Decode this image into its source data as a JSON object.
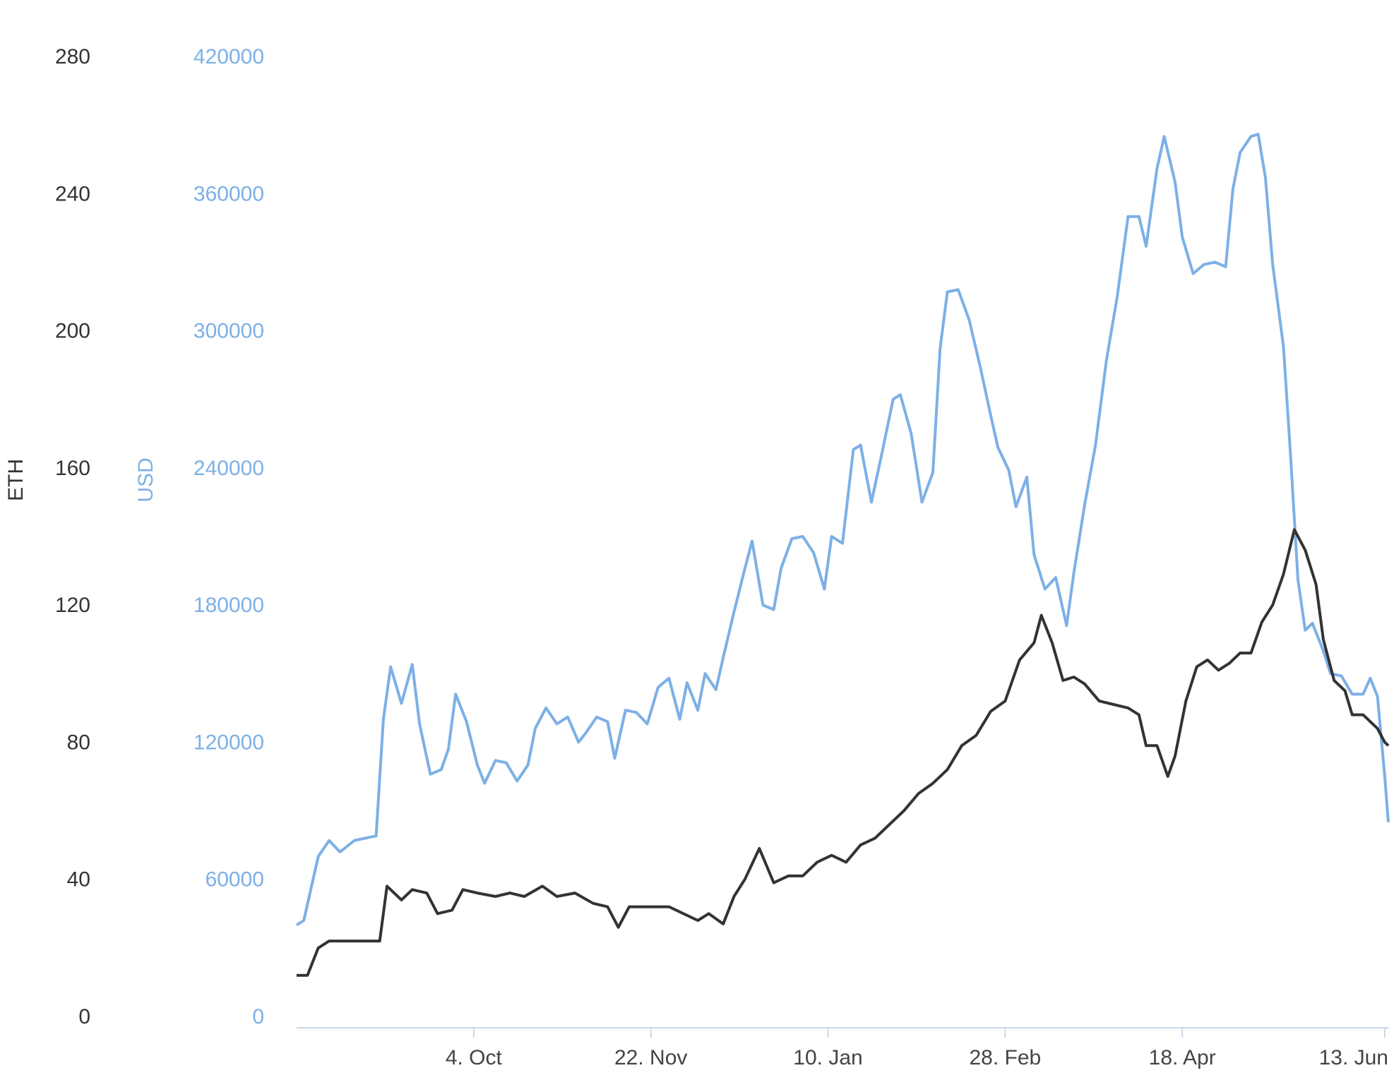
{
  "chart_data": {
    "type": "line",
    "title": "",
    "xlabel": "",
    "x_tick_labels": [
      "4. Oct",
      "22. Nov",
      "10. Jan",
      "28. Feb",
      "18. Apr",
      "13. Jun"
    ],
    "x_range": [
      "2020-08-16",
      "2021-06-14"
    ],
    "y_axes": [
      {
        "id": "eth",
        "label": "ETH",
        "ylim": [
          0,
          280
        ],
        "ticks": [
          0,
          40,
          80,
          120,
          160,
          200,
          240,
          280
        ],
        "color": "#333333"
      },
      {
        "id": "usd",
        "label": "USD",
        "ylim": [
          0,
          420000
        ],
        "ticks": [
          0,
          60000,
          120000,
          180000,
          240000,
          300000,
          360000,
          420000
        ],
        "color": "#7cb0e6"
      }
    ],
    "grid": false,
    "legend": "none",
    "series": [
      {
        "axis": "usd",
        "color": "#7cb0e6",
        "points": [
          [
            "2020-08-16",
            40000
          ],
          [
            "2020-08-18",
            42000
          ],
          [
            "2020-08-22",
            70000
          ],
          [
            "2020-08-25",
            77000
          ],
          [
            "2020-08-28",
            72000
          ],
          [
            "2020-09-01",
            77000
          ],
          [
            "2020-09-07",
            79000
          ],
          [
            "2020-09-09",
            130000
          ],
          [
            "2020-09-11",
            153000
          ],
          [
            "2020-09-14",
            137000
          ],
          [
            "2020-09-17",
            154000
          ],
          [
            "2020-09-19",
            128000
          ],
          [
            "2020-09-22",
            106000
          ],
          [
            "2020-09-25",
            108000
          ],
          [
            "2020-09-27",
            117000
          ],
          [
            "2020-09-29",
            141000
          ],
          [
            "2020-10-02",
            129000
          ],
          [
            "2020-10-05",
            110000
          ],
          [
            "2020-10-07",
            102000
          ],
          [
            "2020-10-10",
            112000
          ],
          [
            "2020-10-13",
            111000
          ],
          [
            "2020-10-16",
            103000
          ],
          [
            "2020-10-19",
            110000
          ],
          [
            "2020-10-21",
            126000
          ],
          [
            "2020-10-24",
            135000
          ],
          [
            "2020-10-27",
            128000
          ],
          [
            "2020-10-30",
            131000
          ],
          [
            "2020-11-02",
            120000
          ],
          [
            "2020-11-04",
            124000
          ],
          [
            "2020-11-07",
            131000
          ],
          [
            "2020-11-10",
            129000
          ],
          [
            "2020-11-12",
            113000
          ],
          [
            "2020-11-15",
            134000
          ],
          [
            "2020-11-18",
            133000
          ],
          [
            "2020-11-21",
            128000
          ],
          [
            "2020-11-24",
            144000
          ],
          [
            "2020-11-27",
            148000
          ],
          [
            "2020-11-30",
            130000
          ],
          [
            "2020-12-02",
            146000
          ],
          [
            "2020-12-05",
            134000
          ],
          [
            "2020-12-07",
            150000
          ],
          [
            "2020-12-10",
            143000
          ],
          [
            "2020-12-12",
            157000
          ],
          [
            "2020-12-15",
            177000
          ],
          [
            "2020-12-18",
            196000
          ],
          [
            "2020-12-20",
            208000
          ],
          [
            "2020-12-23",
            180000
          ],
          [
            "2020-12-26",
            178000
          ],
          [
            "2020-12-28",
            196000
          ],
          [
            "2020-12-31",
            209000
          ],
          [
            "2021-01-03",
            210000
          ],
          [
            "2021-01-06",
            203000
          ],
          [
            "2021-01-09",
            187000
          ],
          [
            "2021-01-11",
            210000
          ],
          [
            "2021-01-14",
            207000
          ],
          [
            "2021-01-17",
            248000
          ],
          [
            "2021-01-19",
            250000
          ],
          [
            "2021-01-22",
            225000
          ],
          [
            "2021-01-25",
            247000
          ],
          [
            "2021-01-28",
            270000
          ],
          [
            "2021-01-30",
            272000
          ],
          [
            "2021-02-02",
            255000
          ],
          [
            "2021-02-05",
            225000
          ],
          [
            "2021-02-08",
            238000
          ],
          [
            "2021-02-10",
            292000
          ],
          [
            "2021-02-12",
            317000
          ],
          [
            "2021-02-15",
            318000
          ],
          [
            "2021-02-18",
            305000
          ],
          [
            "2021-02-21",
            285000
          ],
          [
            "2021-02-24",
            263000
          ],
          [
            "2021-02-26",
            249000
          ],
          [
            "2021-03-01",
            239000
          ],
          [
            "2021-03-03",
            223000
          ],
          [
            "2021-03-06",
            236000
          ],
          [
            "2021-03-08",
            202000
          ],
          [
            "2021-03-11",
            187000
          ],
          [
            "2021-03-14",
            192000
          ],
          [
            "2021-03-17",
            171000
          ],
          [
            "2021-03-19",
            194000
          ],
          [
            "2021-03-22",
            224000
          ],
          [
            "2021-03-25",
            250000
          ],
          [
            "2021-03-28",
            287000
          ],
          [
            "2021-03-31",
            315000
          ],
          [
            "2021-04-03",
            350000
          ],
          [
            "2021-04-06",
            350000
          ],
          [
            "2021-04-08",
            337000
          ],
          [
            "2021-04-11",
            371000
          ],
          [
            "2021-04-13",
            385000
          ],
          [
            "2021-04-16",
            365000
          ],
          [
            "2021-04-18",
            341000
          ],
          [
            "2021-04-21",
            325000
          ],
          [
            "2021-04-24",
            329000
          ],
          [
            "2021-04-27",
            330000
          ],
          [
            "2021-04-30",
            328000
          ],
          [
            "2021-05-02",
            362000
          ],
          [
            "2021-05-04",
            378000
          ],
          [
            "2021-05-07",
            385000
          ],
          [
            "2021-05-09",
            386000
          ],
          [
            "2021-05-11",
            367000
          ],
          [
            "2021-05-13",
            329000
          ],
          [
            "2021-05-16",
            293000
          ],
          [
            "2021-05-18",
            244000
          ],
          [
            "2021-05-20",
            191000
          ],
          [
            "2021-05-22",
            169000
          ],
          [
            "2021-05-24",
            172000
          ],
          [
            "2021-05-27",
            160000
          ],
          [
            "2021-05-29",
            150000
          ],
          [
            "2021-06-01",
            149000
          ],
          [
            "2021-06-04",
            141000
          ],
          [
            "2021-06-07",
            141000
          ],
          [
            "2021-06-09",
            148000
          ],
          [
            "2021-06-11",
            140000
          ],
          [
            "2021-06-13",
            105000
          ],
          [
            "2021-06-14",
            85000
          ]
        ]
      },
      {
        "axis": "eth",
        "color": "#333333",
        "points": [
          [
            "2020-08-16",
            12
          ],
          [
            "2020-08-19",
            12
          ],
          [
            "2020-08-22",
            20
          ],
          [
            "2020-08-25",
            22
          ],
          [
            "2020-09-08",
            22
          ],
          [
            "2020-09-10",
            38
          ],
          [
            "2020-09-14",
            34
          ],
          [
            "2020-09-17",
            37
          ],
          [
            "2020-09-21",
            36
          ],
          [
            "2020-09-24",
            30
          ],
          [
            "2020-09-28",
            31
          ],
          [
            "2020-10-01",
            37
          ],
          [
            "2020-10-05",
            36
          ],
          [
            "2020-10-10",
            35
          ],
          [
            "2020-10-14",
            36
          ],
          [
            "2020-10-18",
            35
          ],
          [
            "2020-10-23",
            38
          ],
          [
            "2020-10-27",
            35
          ],
          [
            "2020-11-01",
            36
          ],
          [
            "2020-11-06",
            33
          ],
          [
            "2020-11-10",
            32
          ],
          [
            "2020-11-13",
            26
          ],
          [
            "2020-11-16",
            32
          ],
          [
            "2020-11-23",
            32
          ],
          [
            "2020-11-27",
            32
          ],
          [
            "2020-12-01",
            30
          ],
          [
            "2020-12-05",
            28
          ],
          [
            "2020-12-08",
            30
          ],
          [
            "2020-12-12",
            27
          ],
          [
            "2020-12-15",
            35
          ],
          [
            "2020-12-18",
            40
          ],
          [
            "2020-12-22",
            49
          ],
          [
            "2020-12-26",
            39
          ],
          [
            "2020-12-30",
            41
          ],
          [
            "2021-01-03",
            41
          ],
          [
            "2021-01-07",
            45
          ],
          [
            "2021-01-11",
            47
          ],
          [
            "2021-01-15",
            45
          ],
          [
            "2021-01-19",
            50
          ],
          [
            "2021-01-23",
            52
          ],
          [
            "2021-01-27",
            56
          ],
          [
            "2021-01-31",
            60
          ],
          [
            "2021-02-04",
            65
          ],
          [
            "2021-02-08",
            68
          ],
          [
            "2021-02-12",
            72
          ],
          [
            "2021-02-16",
            79
          ],
          [
            "2021-02-20",
            82
          ],
          [
            "2021-02-24",
            89
          ],
          [
            "2021-02-28",
            92
          ],
          [
            "2021-03-04",
            104
          ],
          [
            "2021-03-08",
            109
          ],
          [
            "2021-03-10",
            117
          ],
          [
            "2021-03-13",
            109
          ],
          [
            "2021-03-16",
            98
          ],
          [
            "2021-03-19",
            99
          ],
          [
            "2021-03-22",
            97
          ],
          [
            "2021-03-26",
            92
          ],
          [
            "2021-03-30",
            91
          ],
          [
            "2021-04-03",
            90
          ],
          [
            "2021-04-06",
            88
          ],
          [
            "2021-04-08",
            79
          ],
          [
            "2021-04-11",
            79
          ],
          [
            "2021-04-14",
            70
          ],
          [
            "2021-04-16",
            76
          ],
          [
            "2021-04-19",
            92
          ],
          [
            "2021-04-22",
            102
          ],
          [
            "2021-04-25",
            104
          ],
          [
            "2021-04-28",
            101
          ],
          [
            "2021-05-01",
            103
          ],
          [
            "2021-05-04",
            106
          ],
          [
            "2021-05-07",
            106
          ],
          [
            "2021-05-10",
            115
          ],
          [
            "2021-05-13",
            120
          ],
          [
            "2021-05-16",
            129
          ],
          [
            "2021-05-19",
            142
          ],
          [
            "2021-05-22",
            136
          ],
          [
            "2021-05-25",
            126
          ],
          [
            "2021-05-27",
            110
          ],
          [
            "2021-05-30",
            98
          ],
          [
            "2021-06-02",
            95
          ],
          [
            "2021-06-04",
            88
          ],
          [
            "2021-06-07",
            88
          ],
          [
            "2021-06-09",
            86
          ],
          [
            "2021-06-11",
            84
          ],
          [
            "2021-06-13",
            80
          ],
          [
            "2021-06-14",
            79
          ]
        ]
      }
    ]
  }
}
